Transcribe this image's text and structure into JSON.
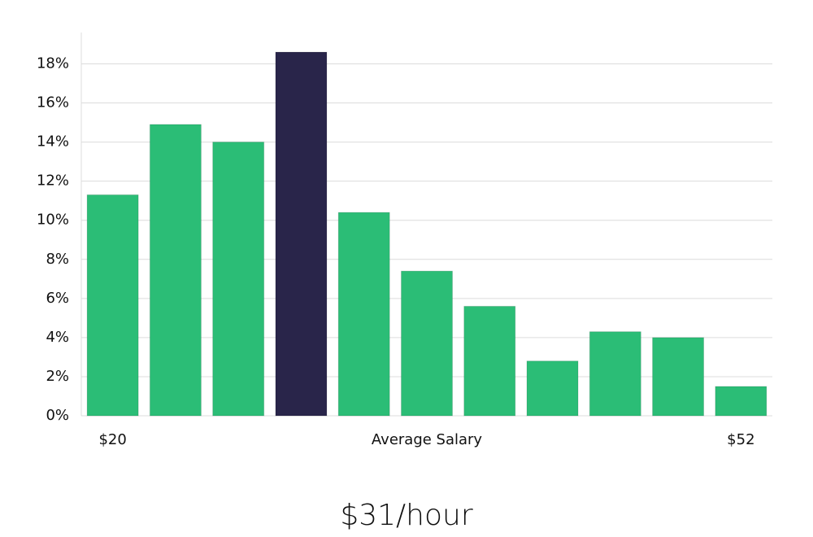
{
  "chart_data": {
    "type": "bar",
    "x_label": "Average Salary",
    "annotation": "$31/hour",
    "categories": [
      "$20",
      null,
      null,
      null,
      null,
      null,
      null,
      null,
      null,
      null,
      "$52"
    ],
    "values": [
      11.3,
      14.9,
      14.0,
      18.6,
      10.4,
      7.4,
      5.6,
      2.8,
      4.3,
      4.0,
      1.5
    ],
    "colors": [
      "#2bbd76",
      "#2bbd76",
      "#2bbd76",
      "#29254a",
      "#2bbd76",
      "#2bbd76",
      "#2bbd76",
      "#2bbd76",
      "#2bbd76",
      "#2bbd76",
      "#2bbd76"
    ],
    "ylim": [
      0,
      19.6
    ],
    "yticks": [
      {
        "value": 0,
        "label": "0%"
      },
      {
        "value": 2,
        "label": "2%"
      },
      {
        "value": 4,
        "label": "4%"
      },
      {
        "value": 6,
        "label": "6%"
      },
      {
        "value": 8,
        "label": "8%"
      },
      {
        "value": 10,
        "label": "10%"
      },
      {
        "value": 12,
        "label": "12%"
      },
      {
        "value": 14,
        "label": "14%"
      },
      {
        "value": 16,
        "label": "16%"
      },
      {
        "value": 18,
        "label": "18%"
      }
    ],
    "grid": true
  }
}
